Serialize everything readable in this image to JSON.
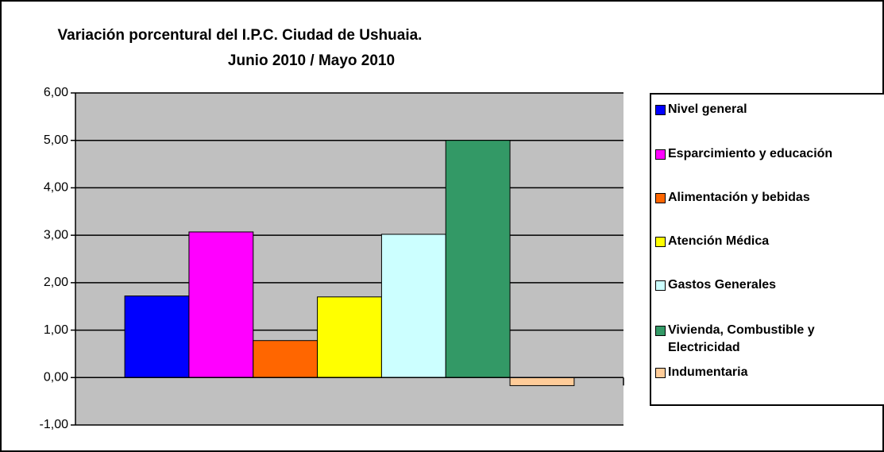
{
  "chart_data": {
    "type": "bar",
    "title": "Variación porcentural del I.P.C. Ciudad de Ushuaia.",
    "subtitle": "Junio 2010 / Mayo 2010",
    "categories": [
      null
    ],
    "series": [
      {
        "name": "Nivel general",
        "color": "#0000ff",
        "values": [
          1.72
        ]
      },
      {
        "name": "Esparcimiento y educación",
        "color": "#ff00ff",
        "values": [
          3.07
        ]
      },
      {
        "name": "Alimentación y bebidas",
        "color": "#ff6600",
        "values": [
          0.78
        ]
      },
      {
        "name": "Atención Médica",
        "color": "#ffff00",
        "values": [
          1.7
        ]
      },
      {
        "name": "Gastos Generales",
        "color": "#ccffff",
        "values": [
          3.02
        ]
      },
      {
        "name": "Vivienda, Combustible y Electricidad",
        "color": "#339966",
        "values": [
          5.0
        ]
      },
      {
        "name": "Indumentaria",
        "color": "#ffcc99",
        "values": [
          -0.17
        ]
      }
    ],
    "ylim": [
      -1,
      6
    ],
    "yticks": [
      {
        "value": -1,
        "label": "-1,00"
      },
      {
        "value": 0,
        "label": "0,00"
      },
      {
        "value": 1,
        "label": "1,00"
      },
      {
        "value": 2,
        "label": "2,00"
      },
      {
        "value": 3,
        "label": "3,00"
      },
      {
        "value": 4,
        "label": "4,00"
      },
      {
        "value": 5,
        "label": "5,00"
      },
      {
        "value": 6,
        "label": "6,00"
      }
    ],
    "grid": true,
    "legend": "right"
  }
}
